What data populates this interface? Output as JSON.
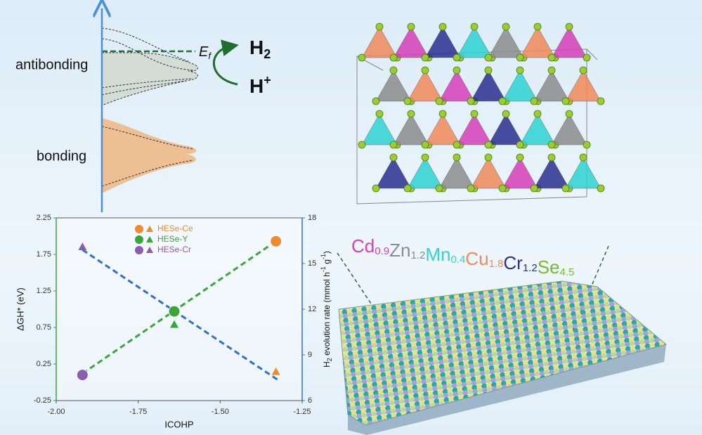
{
  "diagram": {
    "antibonding": "antibonding",
    "bonding": "bonding",
    "ef": "E",
    "ef_sub": "f",
    "h2": "H",
    "h2_sub": "2",
    "hplus": "H",
    "hplus_sup": "+"
  },
  "formula": [
    {
      "el": "Cd",
      "sub": "0.9",
      "color": "#d63fb8"
    },
    {
      "el": "Zn",
      "sub": "1.2",
      "color": "#8c8c8c"
    },
    {
      "el": "Mn",
      "sub": "0.4",
      "color": "#2ed3d3"
    },
    {
      "el": "Cu",
      "sub": "1.8",
      "color": "#f08a5a"
    },
    {
      "el": "Cr",
      "sub": "1.2",
      "color": "#2b2f8f"
    },
    {
      "el": "Se",
      "sub": "4.5",
      "color": "#7cb82e"
    }
  ],
  "chart_data": {
    "type": "scatter",
    "xlabel": "ICOHP",
    "ylabel": "ΔGH* (eV)",
    "y2label_parts": [
      {
        "text": "H"
      },
      {
        "text": "2",
        "shift": "sub"
      },
      {
        "text": " evolution rate (mmol h"
      },
      {
        "text": "-1",
        "shift": "super"
      },
      {
        "text": " g"
      },
      {
        "text": "-1",
        "shift": "super"
      },
      {
        "text": ")"
      }
    ],
    "xlim": [
      -2.0,
      -1.25
    ],
    "xticks": [
      {
        "value": -2.0,
        "label": "-2.00"
      },
      {
        "value": -1.75,
        "label": "-1.75"
      },
      {
        "value": -1.5,
        "label": "-1.50"
      },
      {
        "value": -1.25,
        "label": "-1.25"
      }
    ],
    "ylim": [
      -0.25,
      2.25
    ],
    "yticks": [
      -0.25,
      0.25,
      0.75,
      1.25,
      1.75,
      2.25
    ],
    "ycolor": "#3aa63a",
    "y2lim": [
      6,
      18
    ],
    "y2ticks": [
      6,
      9,
      12,
      15,
      18
    ],
    "y2color": "#2f6fd0",
    "series": [
      {
        "name": "HESe-Ce",
        "color": "#f08a2c",
        "x": [
          -1.33
        ],
        "values": [
          1.93
        ],
        "y2_values": [
          7.9
        ]
      },
      {
        "name": "HESe-Y",
        "color": "#3aa63a",
        "x": [
          -1.64
        ],
        "values": [
          0.97
        ],
        "y2_values": [
          11.0
        ]
      },
      {
        "name": "HESe-Cr",
        "color": "#8a5db0",
        "x": [
          -1.92
        ],
        "values": [
          0.1
        ],
        "y2_values": [
          16.1
        ]
      }
    ],
    "fit_lines": [
      {
        "color": "#3aa63a",
        "axis": "y",
        "x": [
          -1.92,
          -1.33
        ],
        "values": [
          0.12,
          1.93
        ]
      },
      {
        "color": "#2f6fd0",
        "axis": "y2",
        "x": [
          -1.92,
          -1.32
        ],
        "values": [
          15.9,
          7.3
        ]
      }
    ]
  }
}
